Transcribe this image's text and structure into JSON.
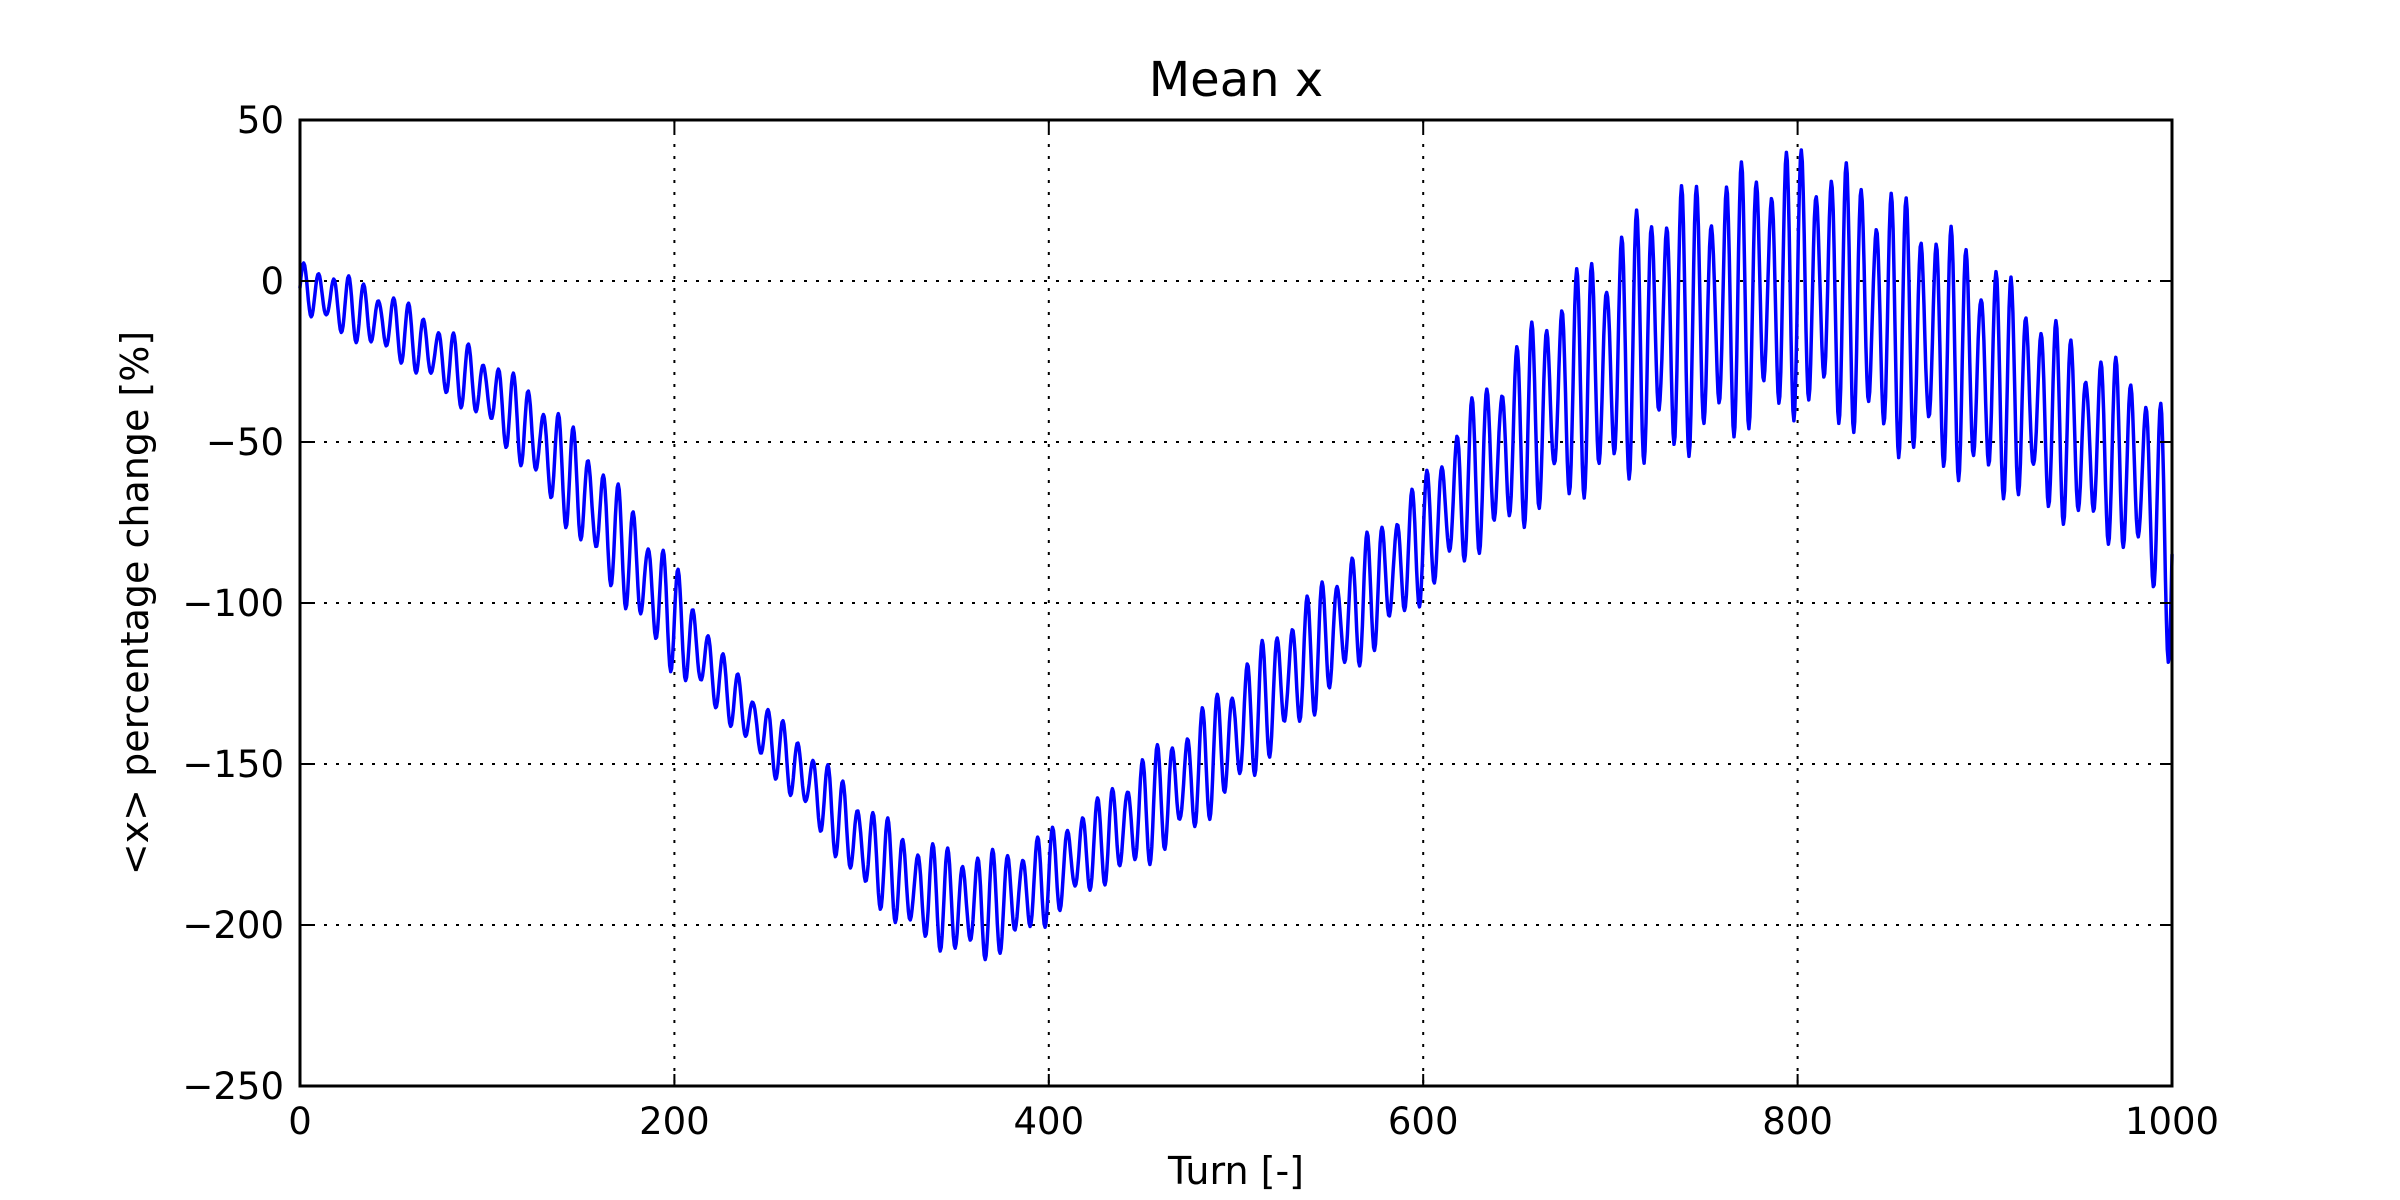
{
  "chart_data": {
    "type": "line",
    "title": "Mean x",
    "xlabel": "Turn [-]",
    "ylabel": "<x> percentage change [%]",
    "xlim": [
      0,
      1000
    ],
    "ylim": [
      -250,
      50
    ],
    "xticks": [
      0,
      200,
      400,
      600,
      800,
      1000
    ],
    "yticks": [
      50,
      0,
      -50,
      -100,
      -150,
      -200,
      -250
    ],
    "xtick_labels": [
      "0",
      "200",
      "400",
      "600",
      "800",
      "1000"
    ],
    "ytick_labels": [
      "50",
      "0",
      "−50",
      "−100",
      "−150",
      "−200",
      "−250"
    ],
    "grid": true,
    "series": [
      {
        "color": "#0000ff",
        "x": [
          0,
          25,
          50,
          75,
          100,
          125,
          150,
          175,
          200,
          225,
          250,
          275,
          300,
          325,
          350,
          365,
          375,
          400,
          425,
          450,
          475,
          500,
          525,
          550,
          575,
          600,
          625,
          650,
          675,
          700,
          725,
          750,
          775,
          800,
          825,
          850,
          875,
          900,
          925,
          950,
          975,
          990,
          1000
        ],
        "y_center": [
          -2,
          -8,
          -14,
          -24,
          -34,
          -48,
          -65,
          -85,
          -105,
          -125,
          -142,
          -158,
          -175,
          -188,
          -193,
          -194,
          -193,
          -185,
          -175,
          -165,
          -155,
          -140,
          -125,
          -110,
          -95,
          -80,
          -62,
          -48,
          -35,
          -25,
          -15,
          -10,
          -5,
          0,
          -5,
          -12,
          -20,
          -28,
          -38,
          -48,
          -55,
          -65,
          -85
        ],
        "amplitude": [
          8,
          10,
          10,
          11,
          11,
          15,
          18,
          18,
          18,
          10,
          10,
          12,
          15,
          16,
          17,
          18,
          16,
          15,
          14,
          18,
          18,
          20,
          20,
          20,
          20,
          20,
          25,
          30,
          35,
          40,
          43,
          43,
          43,
          43,
          42,
          42,
          40,
          38,
          33,
          30,
          30,
          35,
          38
        ],
        "period": 8
      }
    ]
  }
}
